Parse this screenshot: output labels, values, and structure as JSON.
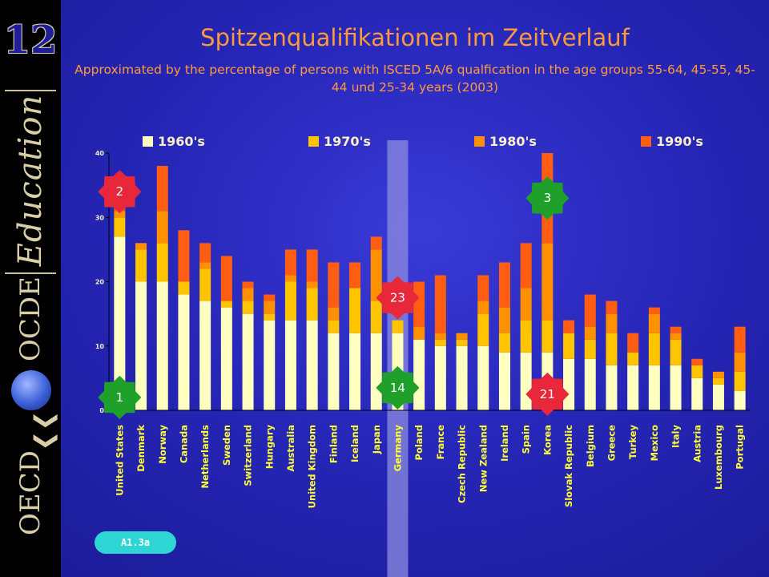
{
  "slide": {
    "number": "12",
    "sidebar_words": {
      "education": "Education",
      "ocde": "OCDE",
      "oecd": "OECD"
    },
    "title": "Spitzenqualifikationen im Zeitverlauf",
    "subtitle": "Approximated by the percentage of persons with ISCED 5A/6 qualfication in the age groups 55-64, 45-55, 45-44 und 25-34 years (2003)",
    "reference_tag": "A1.3a"
  },
  "colors": {
    "s1960": "#ffffc0",
    "s1970": "#ffc400",
    "s1980": "#ff9100",
    "s1990": "#ff5e12",
    "title": "#ff9a3a",
    "badge_red": "#e8283a",
    "badge_green": "#1ea02a",
    "highlight": "#8c8ce0",
    "axis": "#000000"
  },
  "chart_data": {
    "type": "bar",
    "stacked": true,
    "ylim": [
      0,
      40
    ],
    "yticks": [
      0,
      10,
      20,
      30,
      40
    ],
    "categories": [
      "United States",
      "Denmark",
      "Norway",
      "Canada",
      "Netherlands",
      "Sweden",
      "Switzerland",
      "Hungary",
      "Australia",
      "United Kingdom",
      "Finland",
      "Iceland",
      "Japan",
      "Germany",
      "Poland",
      "France",
      "Czech Republic",
      "New Zealand",
      "Ireland",
      "Spain",
      "Korea",
      "Slovak Republic",
      "Belgium",
      "Greece",
      "Turkey",
      "Mexico",
      "Italy",
      "Austria",
      "Luxembourg",
      "Portugal"
    ],
    "series": [
      {
        "name": "1960's",
        "values": [
          27,
          20,
          20,
          18,
          17,
          16,
          15,
          14,
          14,
          14,
          12,
          12,
          12,
          12,
          11,
          10,
          10,
          10,
          9,
          9,
          9,
          8,
          8,
          7,
          7,
          7,
          7,
          5,
          4,
          3
        ]
      },
      {
        "name": "1970's",
        "values": [
          3,
          5,
          6,
          2,
          5,
          1,
          2,
          1,
          6,
          5,
          2,
          7,
          5,
          2,
          0,
          1,
          1,
          5,
          3,
          5,
          5,
          4,
          3,
          5,
          2,
          5,
          4,
          2,
          1,
          3
        ]
      },
      {
        "name": "1980's",
        "values": [
          1,
          1,
          5,
          0,
          1,
          0,
          2,
          2,
          1,
          1,
          2,
          0,
          8,
          0,
          2,
          1,
          1,
          2,
          4,
          5,
          12,
          0,
          2,
          3,
          0,
          3,
          1,
          0,
          1,
          3
        ]
      },
      {
        "name": "1990's",
        "values": [
          3,
          0,
          7,
          8,
          3,
          7,
          1,
          1,
          4,
          5,
          7,
          4,
          2,
          0,
          7,
          9,
          0,
          4,
          7,
          7,
          14,
          2,
          5,
          2,
          3,
          1,
          1,
          1,
          0,
          4
        ]
      }
    ],
    "highlight_category": "Germany",
    "annotations": [
      {
        "label": "2",
        "category": "United States",
        "y": 34,
        "color": "red"
      },
      {
        "label": "1",
        "category": "United States",
        "y": 2,
        "color": "green"
      },
      {
        "label": "23",
        "category": "Germany",
        "y": 17.5,
        "color": "red"
      },
      {
        "label": "14",
        "category": "Germany",
        "y": 3.5,
        "color": "green"
      },
      {
        "label": "3",
        "category": "Korea",
        "y": 33,
        "color": "green"
      },
      {
        "label": "21",
        "category": "Korea",
        "y": 2.5,
        "color": "red"
      }
    ]
  }
}
